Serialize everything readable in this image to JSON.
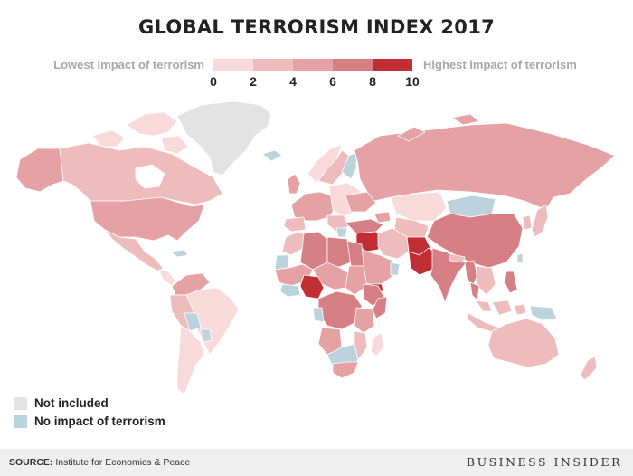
{
  "title": "GLOBAL TERRORISM INDEX 2017",
  "legend": {
    "low_label": "Lowest impact of terrorism",
    "high_label": "Highest impact of terrorism",
    "ticks": [
      "0",
      "2",
      "4",
      "6",
      "8",
      "10"
    ],
    "colors": [
      "#f8dadb",
      "#efbcbe",
      "#e5a1a4",
      "#d67f84",
      "#c12f34"
    ]
  },
  "key": {
    "not_included": "Not included",
    "no_impact": "No impact of terrorism",
    "not_included_color": "#e3e3e3",
    "no_impact_color": "#bcd3dd"
  },
  "footer": {
    "source_label": "SOURCE:",
    "source_text": "Institute for Economics & Peace",
    "brand": "BUSINESS INSIDER"
  }
}
